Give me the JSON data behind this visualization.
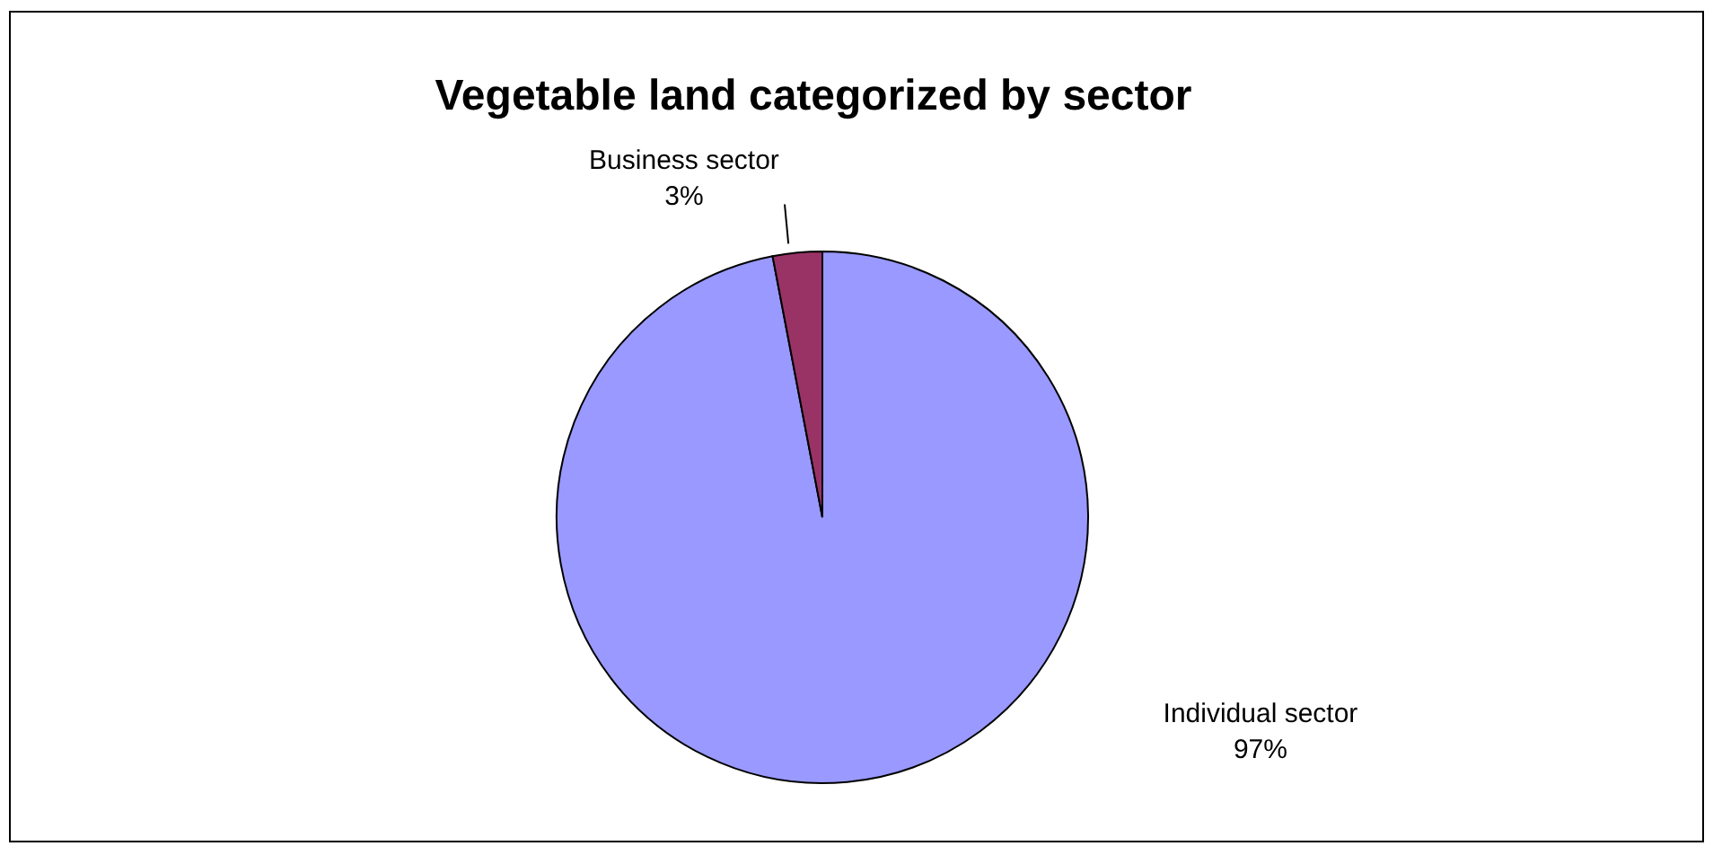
{
  "chart_data": {
    "type": "pie",
    "title": "Vegetable land categorized by sector",
    "categories": [
      "Individual sector",
      "Business sector"
    ],
    "values": [
      97,
      3
    ],
    "colors": [
      "#9999ff",
      "#993366"
    ],
    "value_labels": [
      "97%",
      "3%"
    ],
    "legend": false
  }
}
